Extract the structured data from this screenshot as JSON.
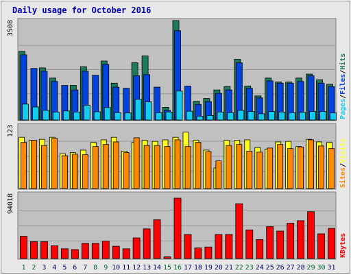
{
  "colors": {
    "background": "#e8e8e8",
    "panel": "#c0c0c0",
    "border": "#808080",
    "title": "#0000bb",
    "hits": "#1e7a5a",
    "files": "#0044dd",
    "pages": "#11ccee",
    "visits": "#ffff22",
    "sites": "#ff8800",
    "kbytes": "#ff0000",
    "weekend_label": "#006633",
    "weekday_label": "#000066"
  },
  "chart_data": [
    {
      "type": "bar",
      "title": "Daily usage for October 2016",
      "ymax_label": "3508",
      "ylim": [
        0,
        3508
      ],
      "side_labels": [
        "Pages",
        "Files",
        "Hits"
      ],
      "label_sep": "/",
      "categories": [
        "1",
        "2",
        "3",
        "4",
        "5",
        "6",
        "7",
        "8",
        "9",
        "10",
        "11",
        "12",
        "13",
        "14",
        "15",
        "16",
        "17",
        "18",
        "19",
        "20",
        "21",
        "22",
        "23",
        "24",
        "25",
        "26",
        "27",
        "28",
        "29",
        "30",
        "31"
      ],
      "weekend_days": [
        "1",
        "2",
        "8",
        "9",
        "15",
        "16",
        "22",
        "23",
        "29",
        "30"
      ],
      "series": [
        {
          "name": "Hits",
          "color_key": "hits",
          "values": [
            2420,
            0,
            1840,
            1480,
            0,
            1220,
            1880,
            0,
            2080,
            1300,
            0,
            2020,
            2260,
            0,
            450,
            3508,
            0,
            660,
            760,
            1060,
            1180,
            2140,
            1200,
            850,
            1480,
            1340,
            1340,
            1480,
            1620,
            1420,
            1260
          ]
        },
        {
          "name": "Files",
          "color_key": "files",
          "values": [
            2300,
            1820,
            1720,
            1360,
            1220,
            1060,
            1720,
            1580,
            1960,
            1160,
            1120,
            1560,
            1600,
            1160,
            340,
            3150,
            1200,
            550,
            650,
            940,
            1060,
            2020,
            1120,
            780,
            1380,
            1300,
            1300,
            1360,
            1560,
            1300,
            1180
          ]
        },
        {
          "name": "Pages",
          "color_key": "pages",
          "values": [
            560,
            460,
            340,
            280,
            320,
            280,
            520,
            290,
            440,
            260,
            250,
            730,
            640,
            260,
            280,
            1020,
            310,
            130,
            160,
            280,
            260,
            340,
            300,
            220,
            300,
            280,
            260,
            270,
            300,
            300,
            250
          ]
        }
      ]
    },
    {
      "type": "bar",
      "ymax_label": "123",
      "ylim": [
        0,
        123
      ],
      "side_labels": [
        "Sites",
        "Visits"
      ],
      "label_sep": "/",
      "categories": [
        "1",
        "2",
        "3",
        "4",
        "5",
        "6",
        "7",
        "8",
        "9",
        "10",
        "11",
        "12",
        "13",
        "14",
        "15",
        "16",
        "17",
        "18",
        "19",
        "20",
        "21",
        "22",
        "23",
        "24",
        "25",
        "26",
        "27",
        "28",
        "29",
        "30",
        "31"
      ],
      "series": [
        {
          "name": "Visits",
          "color_key": "visits",
          "values": [
            100,
            94,
            96,
            100,
            68,
            70,
            75,
            90,
            95,
            100,
            73,
            90,
            94,
            92,
            95,
            100,
            110,
            94,
            75,
            40,
            94,
            94,
            95,
            80,
            77,
            91,
            92,
            82,
            96,
            91,
            90
          ]
        },
        {
          "name": "Sites",
          "color_key": "sites",
          "values": [
            90,
            94,
            84,
            98,
            64,
            67,
            66,
            82,
            86,
            91,
            70,
            99,
            84,
            84,
            82,
            95,
            82,
            90,
            72,
            54,
            84,
            86,
            73,
            71,
            79,
            86,
            78,
            81,
            95,
            83,
            78
          ]
        }
      ]
    },
    {
      "type": "bar",
      "ymax_label": "94018",
      "ylim": [
        0,
        94018
      ],
      "side_labels": [
        "KBytes"
      ],
      "label_sep": "",
      "categories": [
        "1",
        "2",
        "3",
        "4",
        "5",
        "6",
        "7",
        "8",
        "9",
        "10",
        "11",
        "12",
        "13",
        "14",
        "15",
        "16",
        "17",
        "18",
        "19",
        "20",
        "21",
        "22",
        "23",
        "24",
        "25",
        "26",
        "27",
        "28",
        "29",
        "30",
        "31"
      ],
      "series": [
        {
          "name": "KBytes",
          "color_key": "kbytes",
          "values": [
            32400,
            24500,
            24500,
            18600,
            14200,
            13000,
            22000,
            22000,
            25200,
            17900,
            14200,
            30000,
            43200,
            56500,
            2400,
            88000,
            35000,
            15400,
            16800,
            35000,
            35000,
            79900,
            41700,
            27700,
            46500,
            40000,
            51400,
            55100,
            68300,
            36000,
            44000
          ]
        }
      ]
    }
  ]
}
